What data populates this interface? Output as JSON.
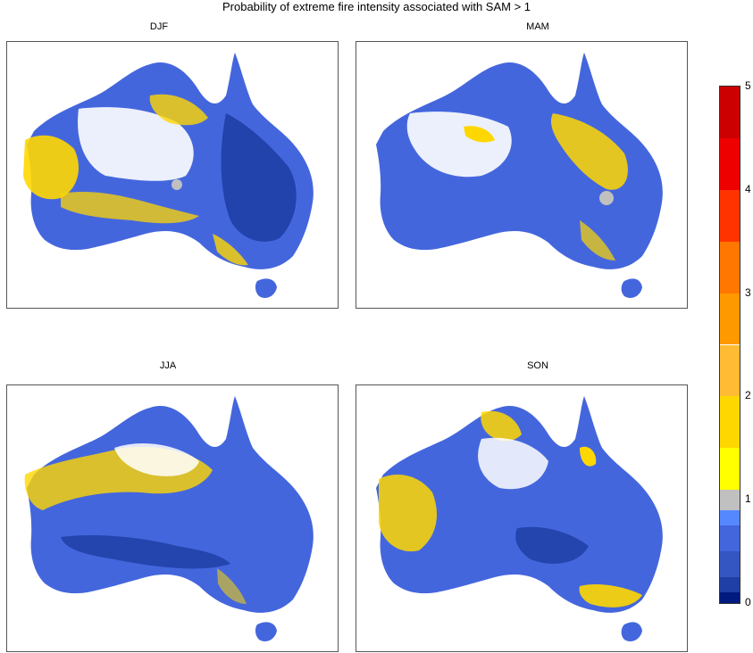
{
  "title": "Probability of extreme fire intensity associated with SAM > 1",
  "panels": [
    {
      "label": "DJF"
    },
    {
      "label": "MAM"
    },
    {
      "label": "JJA"
    },
    {
      "label": "SON"
    }
  ],
  "colorbar": {
    "tick_labels": [
      "0",
      "1",
      "2",
      "3",
      "4",
      "5"
    ],
    "bins": [
      {
        "from": 0.0,
        "to": 0.1,
        "color": "#001a80"
      },
      {
        "from": 0.1,
        "to": 0.25,
        "color": "#1f3fa6"
      },
      {
        "from": 0.25,
        "to": 0.5,
        "color": "#3456c2"
      },
      {
        "from": 0.5,
        "to": 0.75,
        "color": "#4466dd"
      },
      {
        "from": 0.75,
        "to": 0.9,
        "color": "#5588ff"
      },
      {
        "from": 0.9,
        "to": 1.1,
        "color": "#c0c0c0"
      },
      {
        "from": 1.1,
        "to": 1.5,
        "color": "#ffff00"
      },
      {
        "from": 1.5,
        "to": 2.0,
        "color": "#ffd700"
      },
      {
        "from": 2.0,
        "to": 2.5,
        "color": "#ffbb33"
      },
      {
        "from": 2.5,
        "to": 3.0,
        "color": "#ff9900"
      },
      {
        "from": 3.0,
        "to": 3.5,
        "color": "#ff7700"
      },
      {
        "from": 3.5,
        "to": 4.0,
        "color": "#ff3300"
      },
      {
        "from": 4.0,
        "to": 4.5,
        "color": "#ee0000"
      },
      {
        "from": 4.5,
        "to": 5.0,
        "color": "#cc0000"
      }
    ]
  },
  "colors": {
    "land_base": "#4466dd",
    "deep_blue": "#1f3fa6",
    "yellow": "#ffd700",
    "gray": "#c0c0c0",
    "no_data": "#ffffff"
  }
}
